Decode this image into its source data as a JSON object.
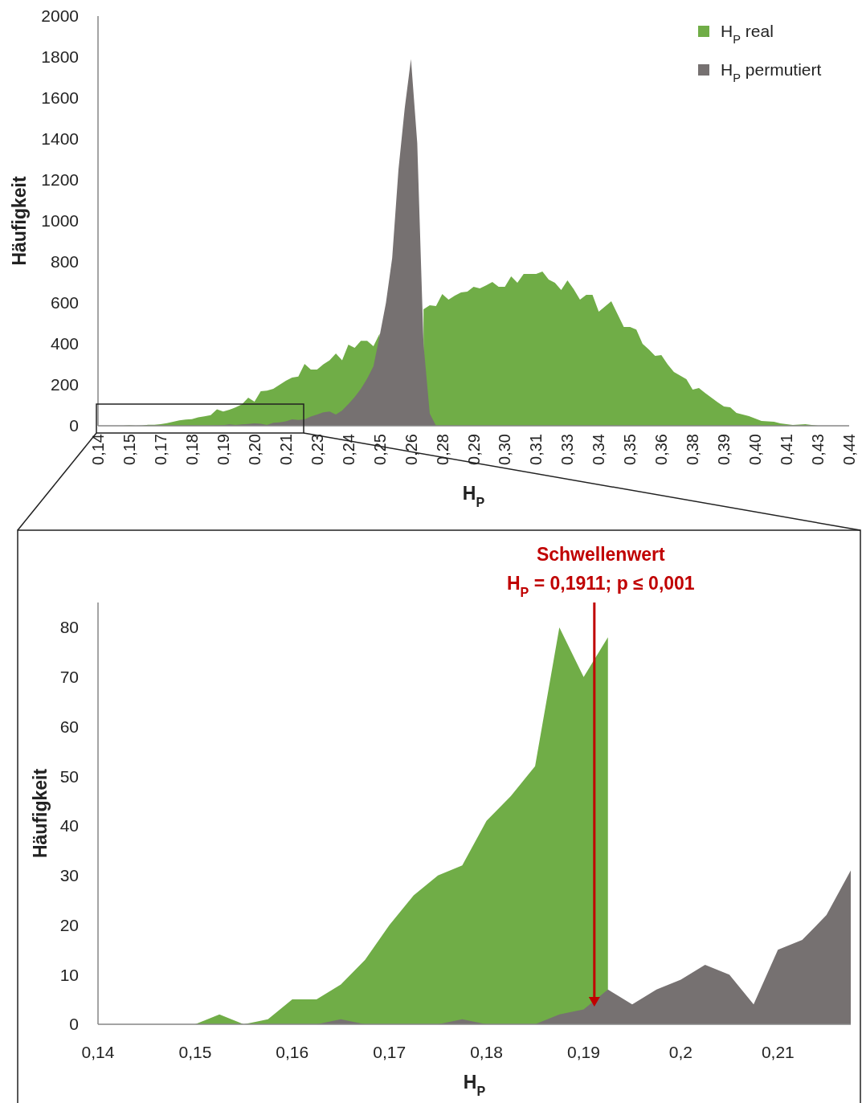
{
  "chart_data": [
    {
      "type": "area",
      "xlabel": "H$_{P}$",
      "ylabel": "Häufigkeit",
      "legend": "top right",
      "xlim": [
        0.14,
        0.44
      ],
      "ylim": [
        0,
        2000
      ],
      "yticks": [
        0,
        200,
        400,
        600,
        800,
        1000,
        1200,
        1400,
        1600,
        1800,
        2000
      ],
      "xticks": [
        {
          "value": 0.14,
          "label": "0,14"
        },
        {
          "value": 0.1525,
          "label": "0,15"
        },
        {
          "value": 0.165,
          "label": "0,17"
        },
        {
          "value": 0.1775,
          "label": "0,18"
        },
        {
          "value": 0.19,
          "label": "0,19"
        },
        {
          "value": 0.2025,
          "label": "0,20"
        },
        {
          "value": 0.215,
          "label": "0,21"
        },
        {
          "value": 0.2275,
          "label": "0,23"
        },
        {
          "value": 0.24,
          "label": "0,24"
        },
        {
          "value": 0.2525,
          "label": "0,25"
        },
        {
          "value": 0.265,
          "label": "0,26"
        },
        {
          "value": 0.2775,
          "label": "0,28"
        },
        {
          "value": 0.29,
          "label": "0,29"
        },
        {
          "value": 0.3025,
          "label": "0,30"
        },
        {
          "value": 0.315,
          "label": "0,31"
        },
        {
          "value": 0.3275,
          "label": "0,33"
        },
        {
          "value": 0.34,
          "label": "0,34"
        },
        {
          "value": 0.3525,
          "label": "0,35"
        },
        {
          "value": 0.365,
          "label": "0,36"
        },
        {
          "value": 0.3775,
          "label": "0,38"
        },
        {
          "value": 0.39,
          "label": "0,39"
        },
        {
          "value": 0.4025,
          "label": "0,40"
        },
        {
          "value": 0.415,
          "label": "0,41"
        },
        {
          "value": 0.4275,
          "label": "0,43"
        },
        {
          "value": 0.44,
          "label": "0,44"
        }
      ],
      "series": [
        {
          "name": "H$_{P}$ real",
          "color": "#70ad47",
          "x": [
            0.14,
            0.15,
            0.1525,
            0.155,
            0.1575,
            0.16,
            0.1625,
            0.165,
            0.1675,
            0.17,
            0.1725,
            0.175,
            0.1775,
            0.18,
            0.1825,
            0.185,
            0.1875,
            0.19,
            0.1925,
            0.195,
            0.1975,
            0.2,
            0.2025,
            0.205,
            0.2075,
            0.21,
            0.2125,
            0.215,
            0.2175,
            0.22,
            0.2225,
            0.225,
            0.2275,
            0.23,
            0.2325,
            0.235,
            0.2375,
            0.24,
            0.2425,
            0.245,
            0.2475,
            0.25,
            0.2525,
            0.255,
            0.2575,
            0.26,
            0.2625,
            0.265,
            0.2675,
            0.27,
            0.2725,
            0.275,
            0.2775,
            0.28,
            0.2825,
            0.285,
            0.2875,
            0.29,
            0.2925,
            0.295,
            0.2975,
            0.3,
            0.3025,
            0.305,
            0.3075,
            0.31,
            0.3125,
            0.315,
            0.3175,
            0.32,
            0.3225,
            0.325,
            0.3275,
            0.33,
            0.3325,
            0.335,
            0.3375,
            0.34,
            0.3425,
            0.345,
            0.3475,
            0.35,
            0.3525,
            0.355,
            0.3575,
            0.36,
            0.3625,
            0.365,
            0.3675,
            0.37,
            0.3725,
            0.375,
            0.3775,
            0.38,
            0.3825,
            0.385,
            0.3875,
            0.39,
            0.3925,
            0.395,
            0.3975,
            0.4,
            0.4025,
            0.405,
            0.4075,
            0.41,
            0.4125,
            0.415,
            0.4175,
            0.42,
            0.4225,
            0.425,
            0.4275,
            0.44
          ],
          "values": [
            0,
            0,
            2,
            0,
            1,
            5,
            5,
            8,
            13,
            20,
            26,
            30,
            32,
            41,
            46,
            52,
            80,
            70,
            78,
            90,
            105,
            137,
            118,
            169,
            172,
            180,
            200,
            220,
            235,
            240,
            302,
            275,
            275,
            300,
            320,
            353,
            320,
            396,
            380,
            415,
            415,
            388,
            450,
            null,
            null,
            null,
            null,
            null,
            null,
            569,
            588,
            584,
            643,
            616,
            635,
            651,
            655,
            678,
            671,
            685,
            702,
            678,
            678,
            729,
            698,
            741,
            741,
            741,
            753,
            714,
            698,
            663,
            710,
            667,
            616,
            639,
            639,
            557,
            582,
            608,
            545,
            482,
            482,
            470,
            400,
            373,
            341,
            345,
            300,
            263,
            245,
            227,
            176,
            184,
            160,
            137,
            115,
            94,
            90,
            63,
            55,
            47,
            35,
            24,
            22,
            20,
            12,
            8,
            4,
            6,
            8,
            4,
            0,
            0
          ]
        },
        {
          "name": "H$_{P}$ permutiert",
          "color": "#767171",
          "x": [
            0.14,
            0.1625,
            0.165,
            0.1675,
            0.175,
            0.1775,
            0.18,
            0.185,
            0.1875,
            0.19,
            0.1925,
            0.195,
            0.1975,
            0.2,
            0.2025,
            0.205,
            0.2075,
            0.21,
            0.2125,
            0.215,
            0.2175,
            0.22,
            0.2225,
            0.225,
            0.2275,
            0.23,
            0.2325,
            0.235,
            0.2375,
            0.24,
            0.2425,
            0.245,
            0.2475,
            0.25,
            0.2525,
            0.255,
            0.2575,
            0.26,
            0.2625,
            0.265,
            0.2675,
            0.27,
            0.2725,
            0.275,
            0.44
          ],
          "values": [
            0,
            0,
            1,
            0,
            0,
            1,
            0,
            0,
            2,
            3,
            7,
            4,
            7,
            9,
            12,
            10,
            4,
            15,
            17,
            22,
            31,
            28,
            31,
            45,
            55,
            66,
            70,
            55,
            75,
            106,
            140,
            180,
            230,
            290,
            440,
            600,
            820,
            1250,
            1550,
            1790,
            1380,
            400,
            60,
            0,
            0
          ]
        }
      ]
    },
    {
      "type": "area",
      "xlabel": "H$_{P}$",
      "ylabel": "Häufigkeit",
      "xlim": [
        0.14,
        0.2175
      ],
      "ylim": [
        0,
        85
      ],
      "yticks": [
        0,
        10,
        20,
        30,
        40,
        50,
        60,
        70,
        80
      ],
      "xticks": [
        {
          "value": 0.14,
          "label": "0,14"
        },
        {
          "value": 0.15,
          "label": "0,15"
        },
        {
          "value": 0.16,
          "label": "0,16"
        },
        {
          "value": 0.17,
          "label": "0,17"
        },
        {
          "value": 0.18,
          "label": "0,18"
        },
        {
          "value": 0.19,
          "label": "0,19"
        },
        {
          "value": 0.2,
          "label": "0,2"
        },
        {
          "value": 0.21,
          "label": "0,21"
        }
      ],
      "ref_lines": [
        {
          "axis": "x",
          "value": 0.1911,
          "label": "Schwellenwert",
          "color": "#c00000"
        }
      ],
      "annotations": [
        "H$_{P}$ = 0,1911; p ≤ 0,001"
      ],
      "series": [
        {
          "color": "#70ad47",
          "x": [
            0.14,
            0.1425,
            0.145,
            0.1475,
            0.15,
            0.1525,
            0.155,
            0.1575,
            0.16,
            0.1625,
            0.165,
            0.1675,
            0.17,
            0.1725,
            0.175,
            0.1775,
            0.18,
            0.1825,
            0.185,
            0.1875,
            0.19,
            0.1925
          ],
          "values": [
            0,
            0,
            0,
            0,
            0,
            2,
            0,
            1,
            5,
            5,
            8,
            13,
            20,
            26,
            30,
            32,
            41,
            46,
            52,
            80,
            70,
            78
          ]
        },
        {
          "color": "#767171",
          "x": [
            0.14,
            0.1425,
            0.145,
            0.1475,
            0.15,
            0.1525,
            0.155,
            0.1575,
            0.16,
            0.1625,
            0.165,
            0.1675,
            0.17,
            0.1725,
            0.175,
            0.1775,
            0.18,
            0.1825,
            0.185,
            0.1875,
            0.19,
            0.1925,
            0.195,
            0.1975,
            0.2,
            0.2025,
            0.205,
            0.2075,
            0.21,
            0.2125,
            0.215,
            0.2175
          ],
          "values": [
            0,
            0,
            0,
            0,
            0,
            0,
            0,
            0,
            0,
            0,
            1,
            0,
            0,
            0,
            0,
            1,
            0,
            0,
            0,
            2,
            3,
            7,
            4,
            7,
            9,
            12,
            10,
            4,
            15,
            17,
            22,
            31
          ]
        }
      ]
    }
  ]
}
